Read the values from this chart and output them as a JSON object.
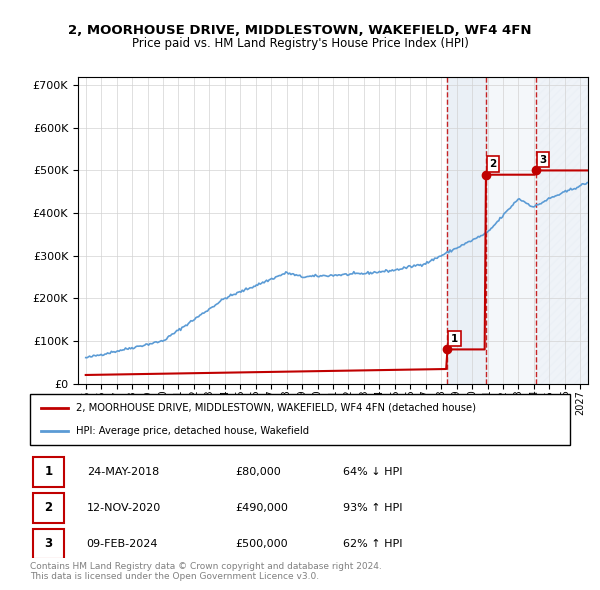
{
  "title": "2, MOORHOUSE DRIVE, MIDDLESTOWN, WAKEFIELD, WF4 4FN",
  "subtitle": "Price paid vs. HM Land Registry's House Price Index (HPI)",
  "hpi_label": "HPI: Average price, detached house, Wakefield",
  "property_label": "2, MOORHOUSE DRIVE, MIDDLESTOWN, WAKEFIELD, WF4 4FN (detached house)",
  "footnote": "Contains HM Land Registry data © Crown copyright and database right 2024.\nThis data is licensed under the Open Government Licence v3.0.",
  "transactions": [
    {
      "num": 1,
      "date": "24-MAY-2018",
      "price": 80000,
      "pct": "64%",
      "dir": "↓",
      "year": 2018.38
    },
    {
      "num": 2,
      "date": "12-NOV-2020",
      "price": 490000,
      "pct": "93%",
      "dir": "↑",
      "year": 2020.87
    },
    {
      "num": 3,
      "date": "09-FEB-2024",
      "price": 500000,
      "pct": "62%",
      "dir": "↑",
      "year": 2024.11
    }
  ],
  "hpi_color": "#5b9bd5",
  "property_color": "#c00000",
  "shading_color": "#dce6f1",
  "transaction_line_color": "#c00000",
  "ylim": [
    0,
    720000
  ],
  "yticks": [
    0,
    100000,
    200000,
    300000,
    400000,
    500000,
    600000,
    700000
  ],
  "background_color": "#ffffff",
  "xstart": 1994.5,
  "xend": 2027.5
}
